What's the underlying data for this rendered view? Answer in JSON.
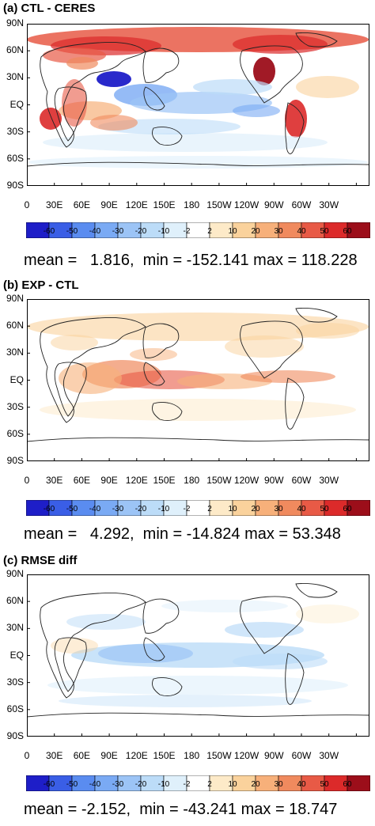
{
  "panels": [
    {
      "title": "(a) CTL - CERES",
      "stats": {
        "mean": "1.816",
        "min": "-152.141",
        "max": "118.228"
      },
      "text": "mean =   1.816,  min = -152.141 max = 118.228",
      "pattern": "ctl"
    },
    {
      "title": "(b) EXP - CTL",
      "stats": {
        "mean": "4.292",
        "min": "-14.824",
        "max": "53.348"
      },
      "text": "mean =   4.292,  min = -14.824 max = 53.348",
      "pattern": "exp"
    },
    {
      "title": "(c) RMSE diff",
      "stats": {
        "mean": "-2.152",
        "min": "-43.241",
        "max": "18.747"
      },
      "text": "mean = -2.152,  min = -43.241 max = 18.747",
      "pattern": "rmse"
    }
  ],
  "lat_labels": [
    "90N",
    "60N",
    "30N",
    "EQ",
    "30S",
    "60S",
    "90S"
  ],
  "lon_labels": [
    "0",
    "30E",
    "60E",
    "90E",
    "120E",
    "150E",
    "180",
    "150W",
    "120W",
    "90W",
    "60W",
    "30W"
  ],
  "colorbar": {
    "labels": [
      "-60",
      "-50",
      "-40",
      "-30",
      "-20",
      "-10",
      "-2",
      "2",
      "10",
      "20",
      "30",
      "40",
      "50",
      "60"
    ],
    "colors": [
      "#1e1ec8",
      "#3a5ee6",
      "#5a8cf0",
      "#7aaaf4",
      "#9cc4f6",
      "#bcdcf8",
      "#dff0fb",
      "#ffffff",
      "#fdeac8",
      "#fad29c",
      "#f7b07a",
      "#f08a5e",
      "#e85a46",
      "#dc2a2a",
      "#9c0e1a"
    ]
  }
}
